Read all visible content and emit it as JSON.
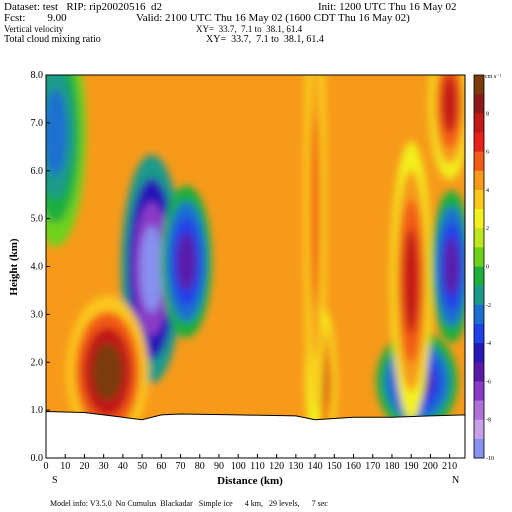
{
  "header": {
    "dataset": "Dataset: test   RIP: rip20020516  d2",
    "init": "Init: 1200 UTC Thu 16 May 02",
    "fcst": "Fcst:        9.00",
    "valid": "Valid: 2100 UTC Thu 16 May 02 (1600 CDT Thu 16 May 02)",
    "field1": "Vertical velocity",
    "xy1": "XY=  33.7,  7.1 to  38.1, 61.4",
    "field2": "Total cloud mixing ratio",
    "xy2": "XY=  33.7,  7.1 to  38.1, 61.4"
  },
  "footer": {
    "model_info": "Model info: V3.5.0  No Cumulus  Blackadar   Simple ice      4 km,   29 levels,      7 sec"
  },
  "chart_data": {
    "type": "heatmap",
    "xlabel": "Distance  (km)",
    "ylabel": "Height  (km)",
    "xlim": [
      0,
      218
    ],
    "ylim": [
      0,
      8.0
    ],
    "xticks": [
      "0",
      "10",
      "20",
      "30",
      "40",
      "50",
      "60",
      "70",
      "80",
      "90",
      "100",
      "110",
      "120",
      "130",
      "140",
      "150",
      "160",
      "170",
      "180",
      "190",
      "200",
      "210"
    ],
    "yticks": [
      "0.0",
      "1.0",
      "2.0",
      "3.0",
      "4.0",
      "5.0",
      "6.0",
      "7.0",
      "8.0"
    ],
    "left_end_label": "S",
    "right_end_label": "N",
    "colorbar": {
      "units": "cm s⁻¹",
      "labels": [
        "8",
        "6",
        "4",
        "2",
        "0",
        "-2",
        "-4",
        "-6",
        "-8",
        "-10"
      ],
      "colors": [
        "#7a3a0a",
        "#8c1a1a",
        "#c21818",
        "#e8201a",
        "#f25a18",
        "#f79a1a",
        "#fbc81c",
        "#f3f01f",
        "#bde61c",
        "#6ed21c",
        "#1fae3c",
        "#1a9a8a",
        "#1a6fd0",
        "#2040e8",
        "#2818b8",
        "#5a1aa8",
        "#8a3ac8",
        "#b070d8",
        "#c8a0e8",
        "#8890f0"
      ]
    },
    "terrain_km": [
      [
        0,
        0.97
      ],
      [
        20,
        0.95
      ],
      [
        40,
        0.85
      ],
      [
        50,
        0.8
      ],
      [
        60,
        0.9
      ],
      [
        70,
        0.92
      ],
      [
        100,
        0.9
      ],
      [
        130,
        0.88
      ],
      [
        140,
        0.8
      ],
      [
        160,
        0.85
      ],
      [
        180,
        0.85
      ],
      [
        200,
        0.88
      ],
      [
        218,
        0.9
      ]
    ],
    "features": [
      {
        "x": 55,
        "y": 3.95,
        "value": -10,
        "rx": 6,
        "ry": 0.9
      },
      {
        "x": 73,
        "y": 4.1,
        "value": -6,
        "rx": 5,
        "ry": 0.6
      },
      {
        "x": 193,
        "y": 1.6,
        "value": -6,
        "rx": 8,
        "ry": 0.4
      },
      {
        "x": 211,
        "y": 4.0,
        "value": -6,
        "rx": 4,
        "ry": 0.6
      },
      {
        "x": 32,
        "y": 1.8,
        "value": 8,
        "rx": 8,
        "ry": 0.6
      },
      {
        "x": 143,
        "y": 1.6,
        "value": 6,
        "rx": 3,
        "ry": 0.6
      },
      {
        "x": 190,
        "y": 3.7,
        "value": 6,
        "rx": 4,
        "ry": 1.1
      },
      {
        "x": 210,
        "y": 7.4,
        "value": 6,
        "rx": 4,
        "ry": 0.6
      },
      {
        "x": 140,
        "y": 5.2,
        "value": 4,
        "rx": 2,
        "ry": 2.0
      },
      {
        "x": 5,
        "y": 6.8,
        "value": -3,
        "rx": 6,
        "ry": 0.9
      }
    ]
  }
}
